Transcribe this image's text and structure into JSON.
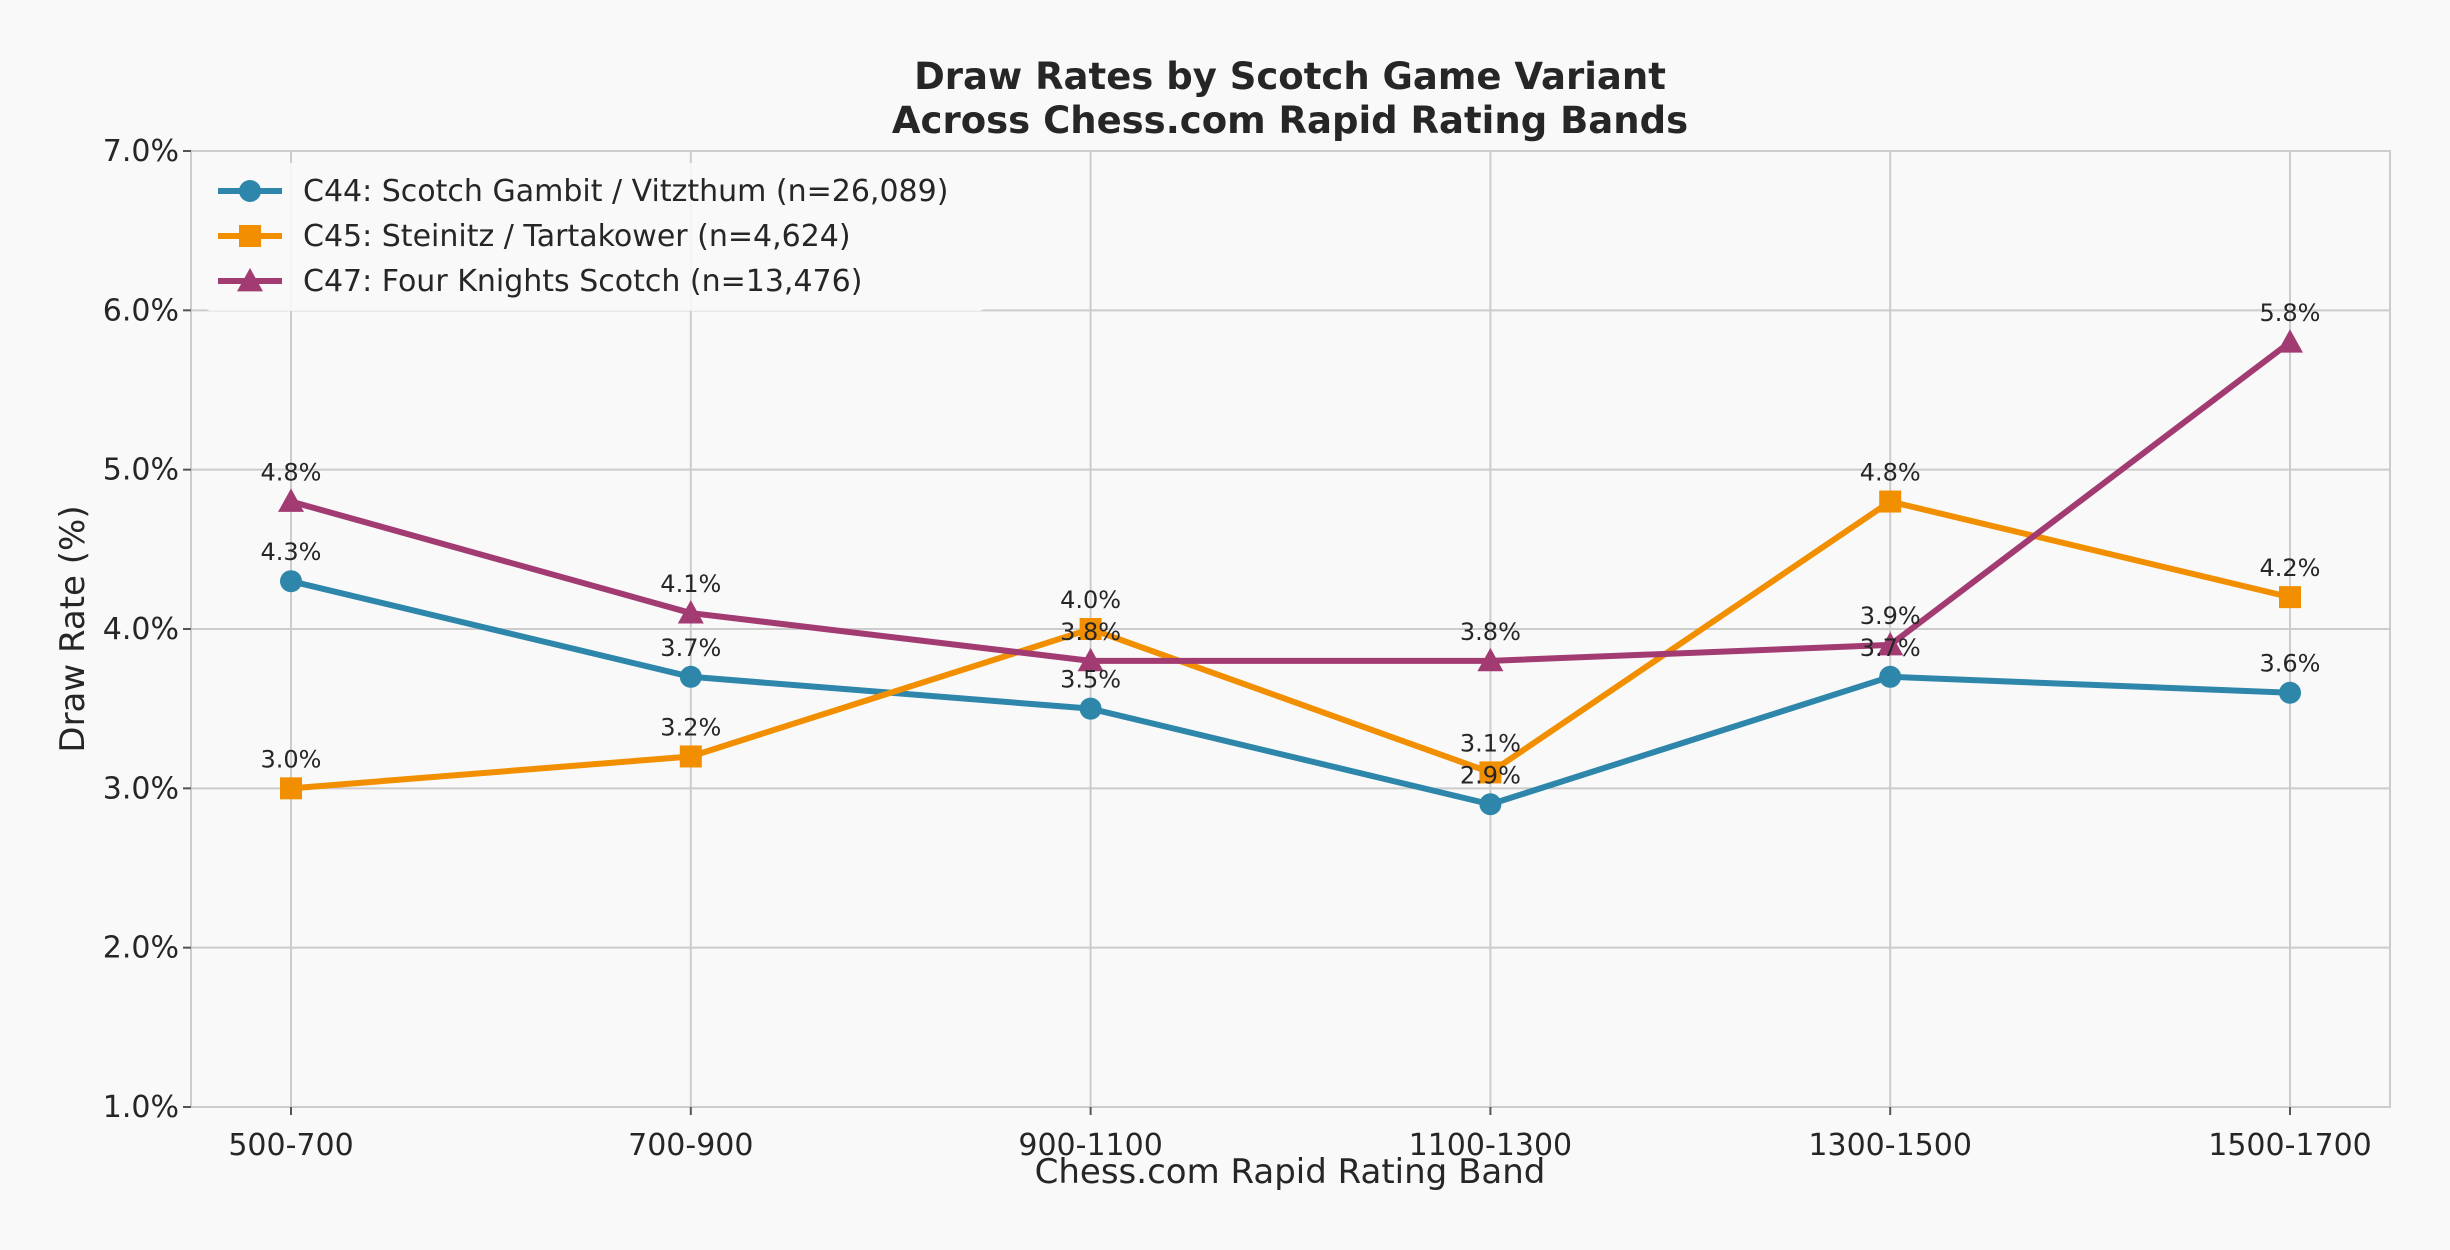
{
  "chart_data": {
    "type": "line",
    "title_lines": [
      "Draw Rates by Scotch Game Variant",
      "Across Chess.com Rapid Rating Bands"
    ],
    "xlabel": "Chess.com Rapid Rating Band",
    "ylabel": "Draw Rate (%)",
    "categories": [
      "500-700",
      "700-900",
      "900-1100",
      "1100-1300",
      "1300-1500",
      "1500-1700"
    ],
    "ylim": [
      1.0,
      7.0
    ],
    "yticks": [
      1.0,
      2.0,
      3.0,
      4.0,
      5.0,
      6.0,
      7.0
    ],
    "ytick_labels": [
      "1.0%",
      "2.0%",
      "3.0%",
      "4.0%",
      "5.0%",
      "6.0%",
      "7.0%"
    ],
    "grid": true,
    "legend_position": "top-left",
    "series": [
      {
        "name": "C44: Scotch Gambit / Vitzthum (n=26,089)",
        "color": "#2e86ab",
        "marker": "circle",
        "values": [
          4.3,
          3.7,
          3.5,
          2.9,
          3.7,
          3.6
        ],
        "labels": [
          "4.3%",
          "3.7%",
          "3.5%",
          "2.9%",
          "3.7%",
          "3.6%"
        ]
      },
      {
        "name": "C45: Steinitz / Tartakower (n=4,624)",
        "color": "#f18f01",
        "marker": "square",
        "values": [
          3.0,
          3.2,
          4.0,
          3.1,
          4.8,
          4.2
        ],
        "labels": [
          "3.0%",
          "3.2%",
          "4.0%",
          "3.1%",
          "4.8%",
          "4.2%"
        ]
      },
      {
        "name": "C47: Four Knights Scotch (n=13,476)",
        "color": "#a23b72",
        "marker": "triangle",
        "values": [
          4.8,
          4.1,
          3.8,
          3.8,
          3.9,
          5.8
        ],
        "labels": [
          "4.8%",
          "4.1%",
          "3.8%",
          "3.8%",
          "3.9%",
          "5.8%"
        ]
      }
    ]
  }
}
